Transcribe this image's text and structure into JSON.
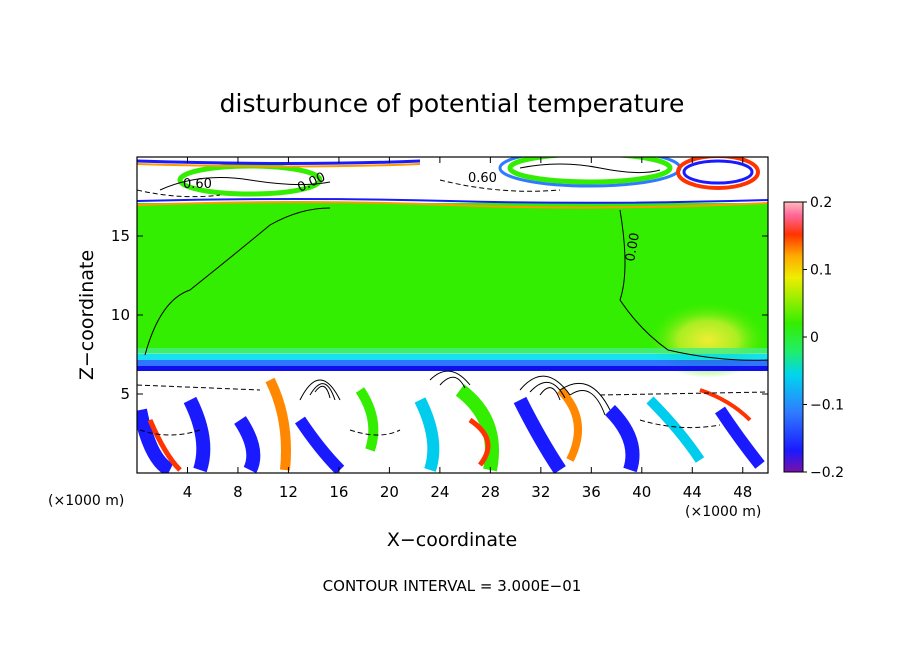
{
  "chart_data": {
    "type": "heatmap",
    "title": "disturbunce of potential temperature",
    "xlabel": "X−coordinate",
    "ylabel": "Z−coordinate",
    "x_unit_left": "(×1000 m)",
    "x_unit_right": "(×1000 m)",
    "xlim": [
      0,
      50
    ],
    "ylim": [
      0,
      20
    ],
    "x_ticks": [
      4,
      8,
      12,
      16,
      20,
      24,
      28,
      32,
      36,
      40,
      44,
      48
    ],
    "y_ticks": [
      5,
      10,
      15
    ],
    "colorbar": {
      "range": [
        -0.2,
        0.2
      ],
      "tick_labels": [
        "0.2",
        "0.1",
        "0",
        "−0.1",
        "−0.2"
      ],
      "tick_values": [
        0.2,
        0.1,
        0,
        -0.1,
        -0.2
      ]
    },
    "contour_labels": [
      "0.60",
      "0.00",
      "0.60",
      "0.00"
    ],
    "footnote": "CONTOUR INTERVAL = 3.000E−01",
    "grid": false
  }
}
